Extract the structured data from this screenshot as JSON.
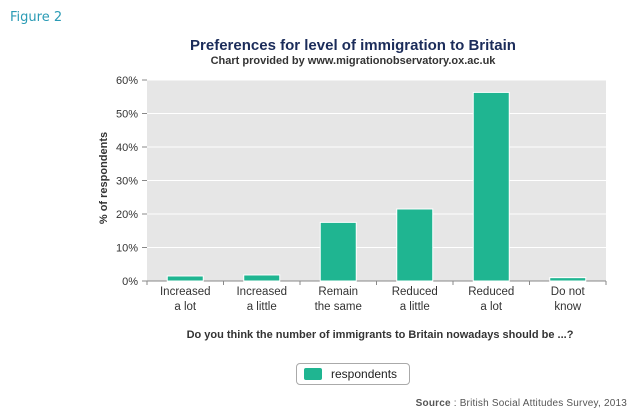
{
  "figure_label": "Figure 2",
  "source_label": "Source",
  "source_text": ": British Social Attitudes Survey, 2013",
  "colors": {
    "bar": "#1fb591",
    "plot_bg": "#e6e6e6",
    "grid": "#ffffff",
    "title": "#1b2c5a",
    "figure_label": "#2a9bb5"
  },
  "chart_data": {
    "type": "bar",
    "title": "Preferences for level of immigration to Britain",
    "subtitle": "Chart provided by www.migrationobservatory.ox.ac.uk",
    "xlabel": "Do you think the number of immigrants to Britain nowadays should be ...?",
    "ylabel": "% of respondents",
    "ylim": [
      0,
      60
    ],
    "yticks": [
      "0%",
      "10%",
      "20%",
      "30%",
      "40%",
      "50%",
      "60%"
    ],
    "yticks_values": [
      0,
      10,
      20,
      30,
      40,
      50,
      60
    ],
    "grid": true,
    "legend_position": "bottom",
    "categories": [
      [
        "Increased",
        "a lot"
      ],
      [
        "Increased",
        "a little"
      ],
      [
        "Remain",
        "the same"
      ],
      [
        "Reduced",
        "a little"
      ],
      [
        "Reduced",
        "a lot"
      ],
      [
        "Do not",
        "know"
      ]
    ],
    "series": [
      {
        "name": "respondents",
        "values": [
          1.5,
          1.8,
          17.5,
          21.5,
          56.3,
          1.0
        ]
      }
    ]
  }
}
